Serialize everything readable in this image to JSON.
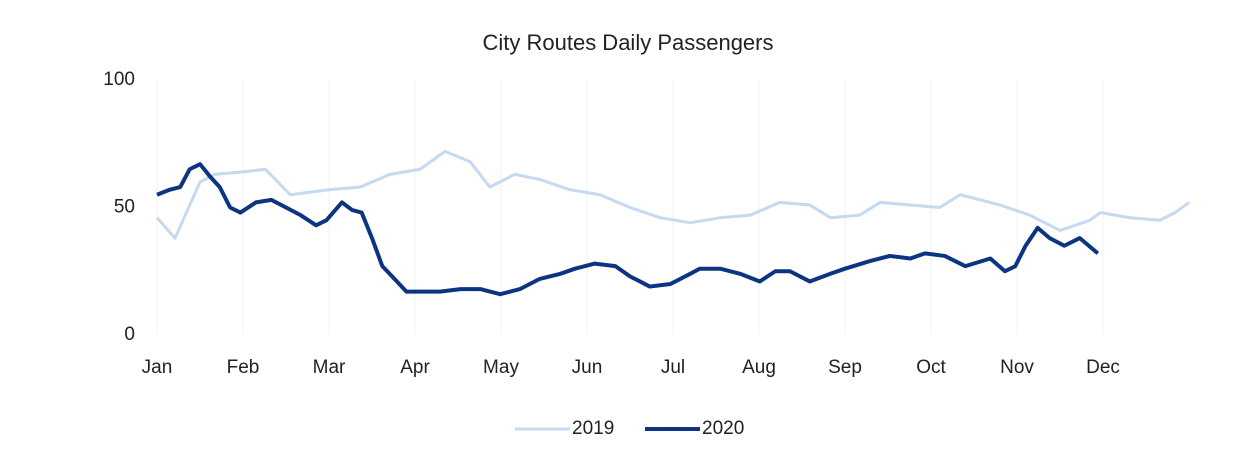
{
  "chart_data": {
    "type": "line",
    "title": "City Routes Daily Passengers",
    "xlim": [
      0,
      12
    ],
    "ylim": [
      0,
      100
    ],
    "yticks": [
      0,
      50,
      100
    ],
    "xticks": [
      {
        "value": 0,
        "label": "Jan"
      },
      {
        "value": 1,
        "label": "Feb"
      },
      {
        "value": 2,
        "label": "Mar"
      },
      {
        "value": 3,
        "label": "Apr"
      },
      {
        "value": 4,
        "label": "May"
      },
      {
        "value": 5,
        "label": "Jun"
      },
      {
        "value": 6,
        "label": "Jul"
      },
      {
        "value": 7,
        "label": "Aug"
      },
      {
        "value": 8,
        "label": "Sep"
      },
      {
        "value": 9,
        "label": "Oct"
      },
      {
        "value": 10,
        "label": "Nov"
      },
      {
        "value": 11,
        "label": "Dec"
      }
    ],
    "grid": true,
    "legend": "bottom",
    "series": [
      {
        "name": "2019",
        "color": "#c5d9f1",
        "width": 3,
        "x": [
          0,
          0.21,
          0.5,
          0.67,
          1.02,
          1.26,
          1.55,
          2.01,
          2.36,
          2.71,
          3.06,
          3.35,
          3.64,
          3.87,
          4.16,
          4.45,
          4.8,
          5.15,
          5.5,
          5.85,
          6.2,
          6.55,
          6.9,
          7.24,
          7.59,
          7.83,
          8.17,
          8.41,
          8.76,
          9.1,
          9.34,
          9.8,
          10.15,
          10.5,
          10.85,
          10.97,
          11.31,
          11.66,
          11.84,
          12.0
        ],
        "values": [
          46,
          38,
          60,
          63,
          64,
          65,
          55,
          57,
          58,
          63,
          65,
          72,
          68,
          58,
          63,
          61,
          57,
          55,
          50,
          46,
          44,
          46,
          47,
          52,
          51,
          46,
          47,
          52,
          51,
          50,
          55,
          51,
          47,
          41,
          45,
          48,
          46,
          45,
          48,
          52
        ]
      },
      {
        "name": "2020",
        "color": "#0b3582",
        "width": 4,
        "x": [
          0,
          0.15,
          0.27,
          0.38,
          0.5,
          0.62,
          0.73,
          0.85,
          0.97,
          1.15,
          1.33,
          1.5,
          1.67,
          1.85,
          1.97,
          2.15,
          2.27,
          2.38,
          2.5,
          2.62,
          2.79,
          2.9,
          3.06,
          3.29,
          3.53,
          3.76,
          3.99,
          4.22,
          4.45,
          4.69,
          4.86,
          5.09,
          5.33,
          5.5,
          5.73,
          5.97,
          6.2,
          6.31,
          6.55,
          6.78,
          7.01,
          7.19,
          7.36,
          7.59,
          7.83,
          8.0,
          8.29,
          8.52,
          8.76,
          8.93,
          9.16,
          9.4,
          9.69,
          9.86,
          9.98,
          10.1,
          10.24,
          10.38,
          10.55,
          10.73,
          10.94
        ],
        "values": [
          55,
          57,
          58,
          65,
          67,
          62,
          58,
          50,
          48,
          52,
          53,
          50,
          47,
          43,
          45,
          52,
          49,
          48,
          38,
          27,
          21,
          17,
          17,
          17,
          18,
          18,
          16,
          18,
          22,
          24,
          26,
          28,
          27,
          23,
          19,
          20,
          24,
          26,
          26,
          24,
          21,
          25,
          25,
          21,
          24,
          26,
          29,
          31,
          30,
          32,
          31,
          27,
          30,
          25,
          27,
          35,
          42,
          38,
          35,
          38,
          32
        ]
      }
    ]
  }
}
